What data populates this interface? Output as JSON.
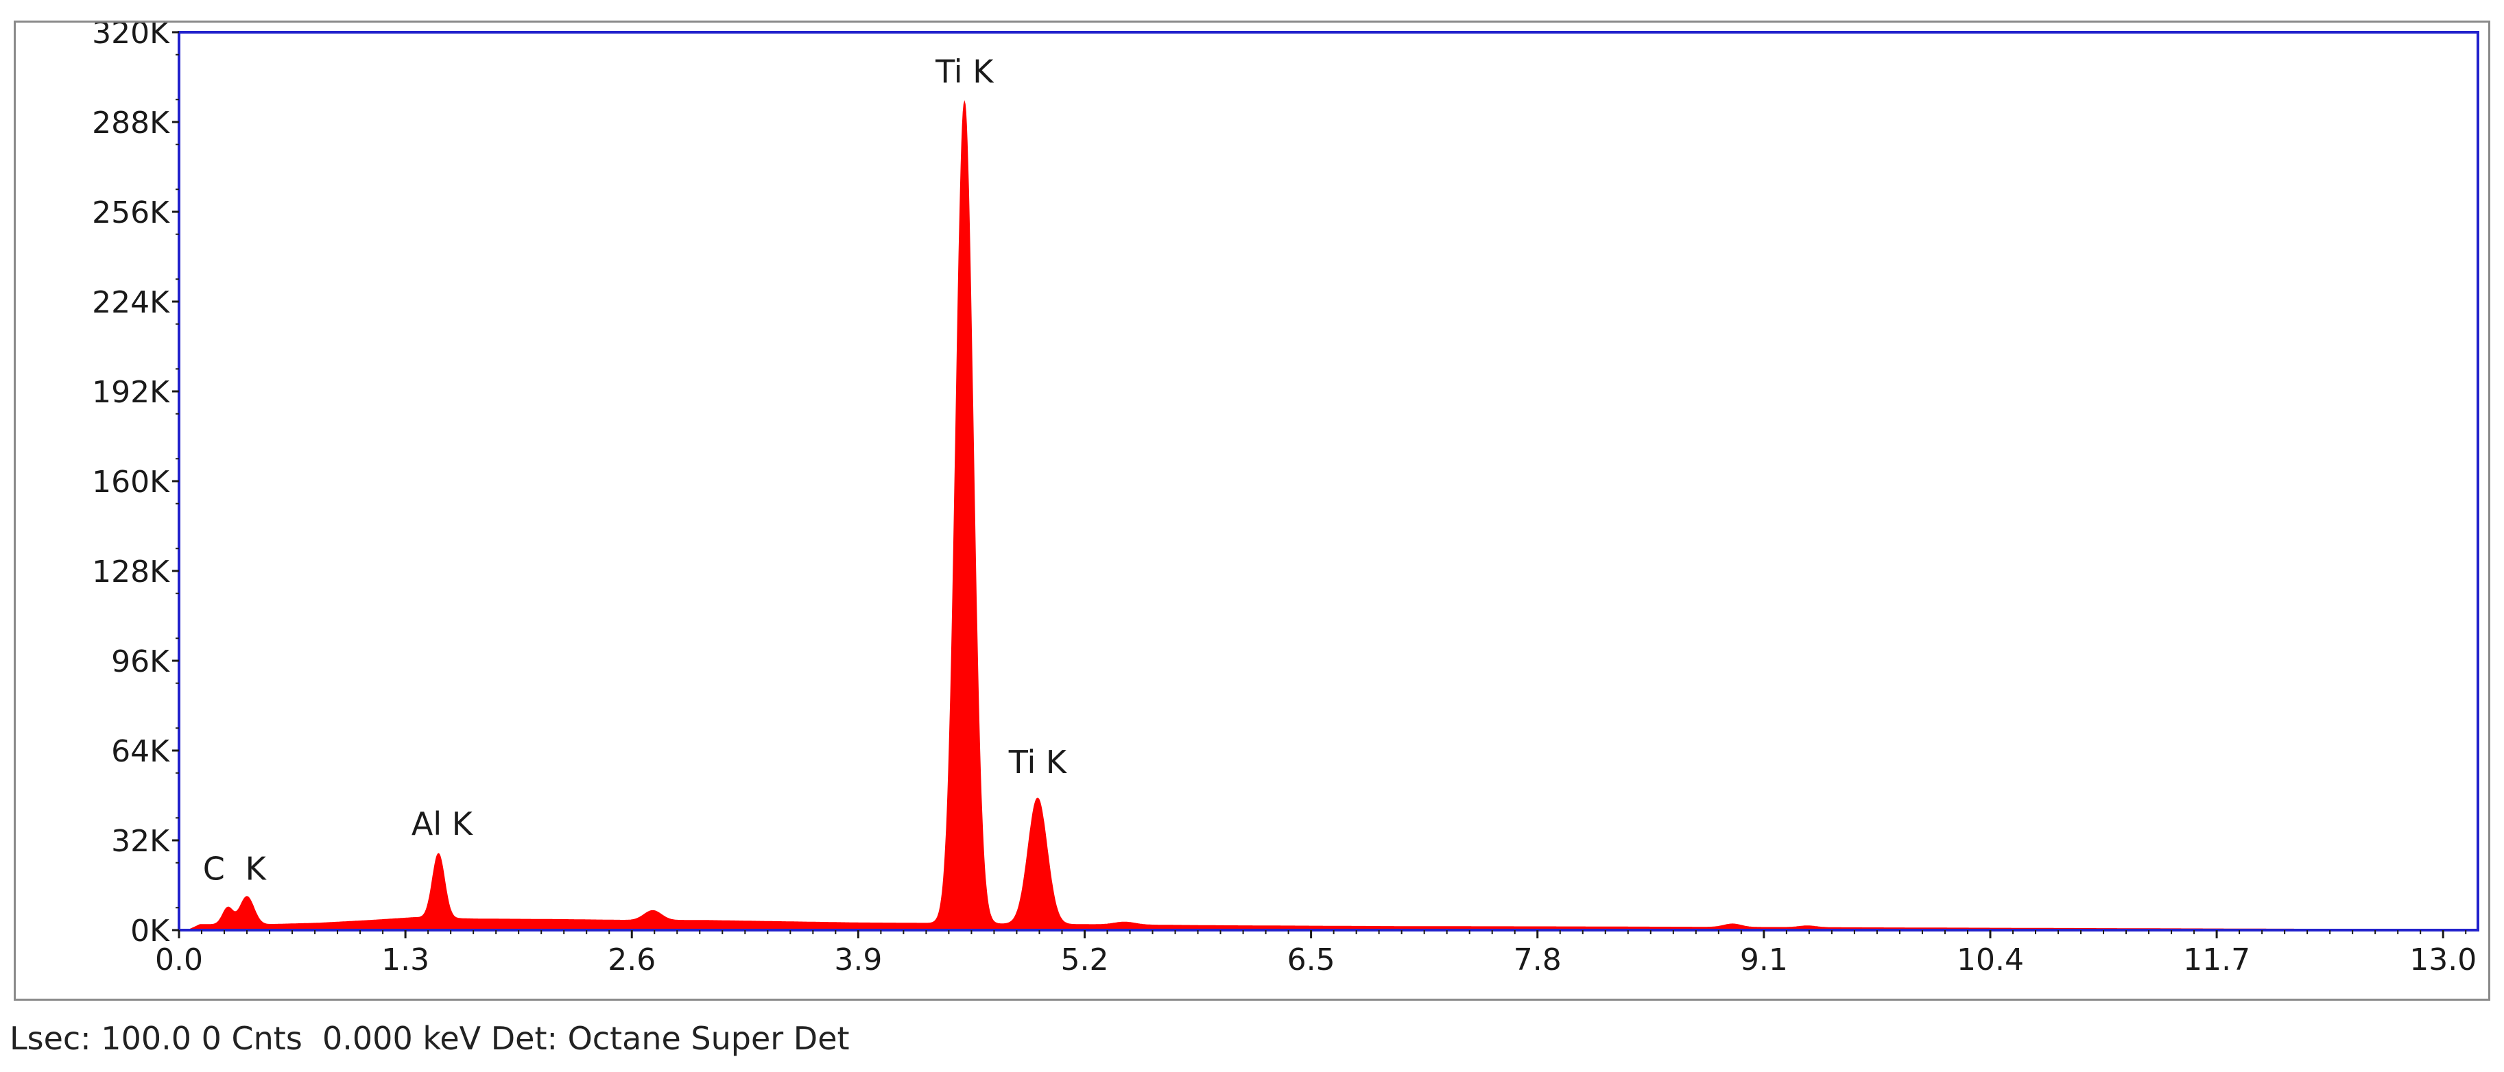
{
  "chart_data": {
    "type": "area",
    "title": "",
    "xlabel": "",
    "ylabel": "",
    "xlim": [
      0,
      13.2
    ],
    "ylim": [
      0,
      320000
    ],
    "x_ticks": [
      "0.0",
      "1.3",
      "2.6",
      "3.9",
      "5.2",
      "6.5",
      "7.8",
      "9.1",
      "10.4",
      "11.7",
      "13.0"
    ],
    "y_ticks": [
      "0K",
      "32K",
      "64K",
      "96K",
      "128K",
      "160K",
      "192K",
      "224K",
      "256K",
      "288K",
      "320K"
    ],
    "grid": false,
    "legend": "none",
    "fill_color": "#ff0000",
    "frame_color": "#2222cc",
    "background_counts": [
      [
        0.05,
        0
      ],
      [
        0.12,
        2000
      ],
      [
        0.5,
        2000
      ],
      [
        0.8,
        2500
      ],
      [
        1.1,
        3500
      ],
      [
        1.35,
        4500
      ],
      [
        1.7,
        4000
      ],
      [
        2.2,
        3800
      ],
      [
        2.6,
        3500
      ],
      [
        3.0,
        3500
      ],
      [
        3.5,
        3000
      ],
      [
        3.9,
        2600
      ],
      [
        4.2,
        2500
      ],
      [
        4.7,
        2200
      ],
      [
        5.2,
        2000
      ],
      [
        6.0,
        1600
      ],
      [
        7.0,
        1300
      ],
      [
        8.0,
        1200
      ],
      [
        9.0,
        1000
      ],
      [
        10.0,
        800
      ],
      [
        11.0,
        600
      ],
      [
        12.0,
        400
      ],
      [
        13.0,
        250
      ],
      [
        13.2,
        200
      ]
    ],
    "peaks": [
      {
        "energy_keV": 0.28,
        "counts": 6000,
        "sigma": 0.03
      },
      {
        "energy_keV": 0.39,
        "counts": 10000,
        "sigma": 0.04
      },
      {
        "energy_keV": 1.49,
        "counts": 23000,
        "sigma": 0.035
      },
      {
        "energy_keV": 2.72,
        "counts": 3500,
        "sigma": 0.05
      },
      {
        "energy_keV": 4.51,
        "counts": 293000,
        "sigma": 0.05
      },
      {
        "energy_keV": 4.93,
        "counts": 45000,
        "sigma": 0.055
      },
      {
        "energy_keV": 5.43,
        "counts": 1000,
        "sigma": 0.06
      },
      {
        "energy_keV": 8.92,
        "counts": 1200,
        "sigma": 0.05
      },
      {
        "energy_keV": 9.35,
        "counts": 600,
        "sigma": 0.05
      }
    ],
    "annotations": [
      {
        "text": "C",
        "x": 0.2,
        "y": 18000
      },
      {
        "text": "K",
        "x": 0.44,
        "y": 18000
      },
      {
        "text": "Al K",
        "x": 1.51,
        "y": 34000
      },
      {
        "text": "Ti K",
        "x": 4.51,
        "y": 302000
      },
      {
        "text": "Ti K",
        "x": 4.93,
        "y": 56000
      }
    ]
  },
  "status_bar": {
    "text": "Lsec: 100.0 0 Cnts  0.000 keV Det: Octane Super Det"
  }
}
